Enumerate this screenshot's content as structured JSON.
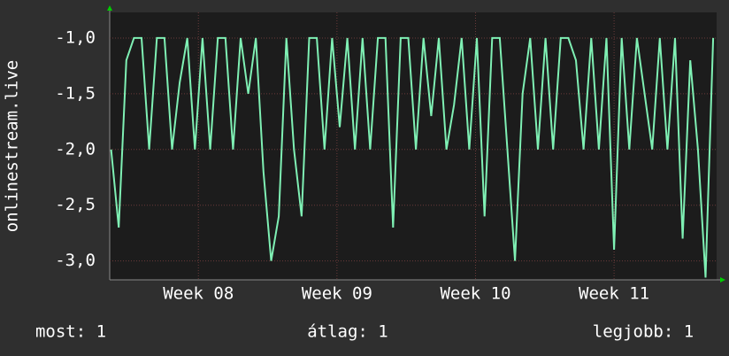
{
  "chart_data": {
    "type": "line",
    "y_label": "onlinestream.live",
    "x": [
      7.37,
      7.425,
      7.48,
      7.535,
      7.59,
      7.645,
      7.7,
      7.755,
      7.81,
      7.865,
      7.92,
      7.975,
      8.03,
      8.085,
      8.14,
      8.195,
      8.25,
      8.305,
      8.36,
      8.415,
      8.47,
      8.525,
      8.58,
      8.635,
      8.69,
      8.745,
      8.8,
      8.855,
      8.91,
      8.965,
      9.02,
      9.075,
      9.13,
      9.185,
      9.24,
      9.295,
      9.35,
      9.405,
      9.46,
      9.515,
      9.57,
      9.625,
      9.68,
      9.735,
      9.79,
      9.845,
      9.9,
      9.955,
      10.01,
      10.065,
      10.12,
      10.175,
      10.23,
      10.285,
      10.34,
      10.395,
      10.45,
      10.505,
      10.56,
      10.615,
      10.67,
      10.725,
      10.78,
      10.835,
      10.89,
      10.945,
      11.0,
      11.055,
      11.11,
      11.165,
      11.22,
      11.275,
      11.33,
      11.385,
      11.44,
      11.495,
      11.55,
      11.605,
      11.66,
      11.715
    ],
    "values": [
      -2,
      -2.7,
      -1.2,
      -1,
      -1,
      -2,
      -1,
      -1,
      -2,
      -1.4,
      -1,
      -2,
      -1,
      -2,
      -1,
      -1,
      -2,
      -1,
      -1.5,
      -1,
      -2.2,
      -3,
      -2.6,
      -1,
      -2,
      -2.6,
      -1,
      -1,
      -2,
      -1,
      -1.8,
      -1,
      -2,
      -1,
      -2,
      -1,
      -1,
      -2.7,
      -1,
      -1,
      -2,
      -1,
      -1.7,
      -1,
      -2,
      -1.6,
      -1,
      -2,
      -1,
      -2.6,
      -1,
      -1,
      -2,
      -3,
      -1.5,
      -1,
      -2,
      -1,
      -2,
      -1,
      -1,
      -1.2,
      -2,
      -1,
      -2,
      -1,
      -2.9,
      -1,
      -2,
      -1,
      -1.5,
      -2,
      -1,
      -2,
      -1,
      -2.8,
      -1.2,
      -2,
      -3.15,
      -1
    ],
    "color": "#7ff0b4",
    "xlim": [
      7.36,
      11.74
    ],
    "xticks": [
      {
        "value": 8,
        "label": "Week 08"
      },
      {
        "value": 9,
        "label": "Week 09"
      },
      {
        "value": 10,
        "label": "Week 10"
      },
      {
        "value": 11,
        "label": "Week 11"
      }
    ],
    "ylim": [
      -3.17,
      -0.77
    ],
    "yticks": [
      {
        "value": -1,
        "label": "-1,0"
      },
      {
        "value": -1.5,
        "label": "-1,5"
      },
      {
        "value": -2,
        "label": "-2,0"
      },
      {
        "value": -2.5,
        "label": "-2,5"
      },
      {
        "value": -3,
        "label": "-3,0"
      }
    ],
    "grid": true,
    "stats": [
      "most: 1",
      "átlag: 1",
      "legjobb: 1"
    ]
  }
}
